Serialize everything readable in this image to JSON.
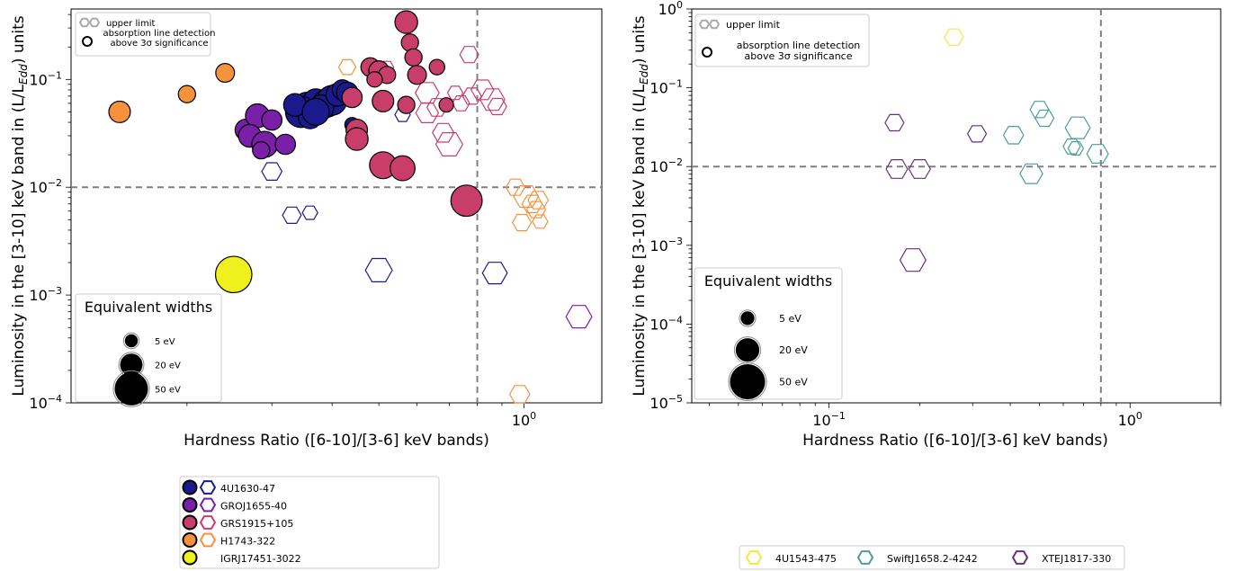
{
  "chart_data": [
    {
      "type": "scatter",
      "xlabel": "Hardness Ratio ([6-10]/[3-6] keV bands)",
      "ylabel": "Luminosity in the [3-10] keV band in (L/L_Edd) units",
      "ylabel_parts": {
        "pre": "Luminosity in the [3-10] keV band in (L/L",
        "sub": "Edd",
        "post": ") units"
      },
      "xscale": "log",
      "yscale": "log",
      "xlim": [
        0.115,
        1.45
      ],
      "ylim": [
        0.0001,
        0.45
      ],
      "x_ticks": [
        {
          "v": 1.0,
          "label": "10"
        }
      ],
      "x_tick_labels_text": [
        "10",
        "0"
      ],
      "y_ticks": [
        {
          "v": 0.0001,
          "base": "10",
          "exp": "−4"
        },
        {
          "v": 0.001,
          "base": "10",
          "exp": "−3"
        },
        {
          "v": 0.01,
          "base": "10",
          "exp": "−2"
        },
        {
          "v": 0.1,
          "base": "10",
          "exp": "−1"
        }
      ],
      "hline": 0.01,
      "vline": 0.8,
      "marker_legend": {
        "upper_limit": "upper limit",
        "detection_line1": "absorption line detection",
        "detection_line2": "above 3σ significance"
      },
      "ew_legend": {
        "title": "Equivalent widths",
        "items": [
          {
            "label": "5 eV",
            "ew": 5
          },
          {
            "label": "20 eV",
            "ew": 20
          },
          {
            "label": "50 eV",
            "ew": 50
          }
        ]
      },
      "series": [
        {
          "name": "4U1630-47",
          "color": "#1a1a8c",
          "detections": [
            [
              0.355,
              0.056,
              28
            ],
            [
              0.37,
              0.062,
              22
            ],
            [
              0.345,
              0.05,
              34
            ],
            [
              0.39,
              0.06,
              26
            ],
            [
              0.4,
              0.064,
              30
            ],
            [
              0.38,
              0.055,
              20
            ],
            [
              0.36,
              0.045,
              18
            ],
            [
              0.41,
              0.072,
              16
            ],
            [
              0.42,
              0.08,
              12
            ],
            [
              0.43,
              0.075,
              14
            ],
            [
              0.335,
              0.058,
              16
            ],
            [
              0.37,
              0.05,
              24
            ],
            [
              0.44,
              0.038,
              5
            ]
          ],
          "limits": [
            [
              0.33,
              0.0055,
              10
            ],
            [
              0.3,
              0.014,
              12
            ],
            [
              0.5,
              0.0017,
              24
            ],
            [
              0.87,
              0.0016,
              20
            ],
            [
              0.36,
              0.0058,
              6
            ],
            [
              0.56,
              0.047,
              6
            ]
          ]
        },
        {
          "name": "GROJ1655-40",
          "color": "#7a1fa8",
          "detections": [
            [
              0.265,
              0.034,
              14
            ],
            [
              0.28,
              0.046,
              18
            ],
            [
              0.27,
              0.03,
              16
            ],
            [
              0.29,
              0.025,
              22
            ],
            [
              0.3,
              0.042,
              12
            ],
            [
              0.32,
              0.025,
              12
            ],
            [
              0.285,
              0.022,
              8
            ]
          ],
          "limits": [
            [
              1.3,
              0.00063,
              22
            ]
          ]
        },
        {
          "name": "GRS1915+105",
          "color": "#c93d6b",
          "detections": [
            [
              0.45,
              0.034,
              14
            ],
            [
              0.57,
              0.34,
              16
            ],
            [
              0.58,
              0.22,
              8
            ],
            [
              0.59,
              0.16,
              8
            ],
            [
              0.6,
              0.11,
              10
            ],
            [
              0.66,
              0.13,
              6
            ],
            [
              0.69,
              0.058,
              5
            ],
            [
              0.48,
              0.13,
              10
            ],
            [
              0.5,
              0.12,
              12
            ],
            [
              0.52,
              0.11,
              8
            ],
            [
              0.49,
              0.1,
              6
            ],
            [
              0.51,
              0.063,
              14
            ],
            [
              0.57,
              0.058,
              8
            ],
            [
              0.45,
              0.028,
              16
            ],
            [
              0.51,
              0.016,
              24
            ],
            [
              0.56,
              0.015,
              20
            ],
            [
              0.76,
              0.0075,
              34
            ],
            [
              0.44,
              0.068,
              12
            ]
          ],
          "limits": [
            [
              0.63,
              0.075,
              18
            ],
            [
              0.66,
              0.055,
              12
            ],
            [
              0.68,
              0.032,
              14
            ],
            [
              0.7,
              0.025,
              24
            ],
            [
              0.72,
              0.075,
              6
            ],
            [
              0.74,
              0.06,
              8
            ],
            [
              0.78,
              0.07,
              10
            ],
            [
              0.82,
              0.08,
              16
            ],
            [
              0.86,
              0.065,
              20
            ],
            [
              0.88,
              0.056,
              10
            ],
            [
              0.77,
              0.17,
              10
            ],
            [
              0.63,
              0.049,
              16
            ],
            [
              0.52,
              0.13,
              4
            ]
          ]
        },
        {
          "name": "H1743-322",
          "color": "#f5923b",
          "detections": [
            [
              0.145,
              0.05,
              14
            ],
            [
              0.2,
              0.073,
              8
            ],
            [
              0.24,
              0.115,
              10
            ]
          ],
          "limits": [
            [
              0.43,
              0.13,
              8
            ],
            [
              0.96,
              0.01,
              10
            ],
            [
              1.01,
              0.0082,
              20
            ],
            [
              1.04,
              0.007,
              12
            ],
            [
              1.07,
              0.0076,
              12
            ],
            [
              1.06,
              0.0062,
              10
            ],
            [
              1.08,
              0.0048,
              6
            ],
            [
              0.99,
              0.0047,
              10
            ],
            [
              0.98,
              0.00012,
              12
            ]
          ]
        },
        {
          "name": "IGRJ17451-3022",
          "color": "#f0f01c",
          "detections": [
            [
              0.25,
              0.00155,
              48
            ]
          ],
          "limits": []
        }
      ],
      "legend_order": [
        "4U1630-47",
        "GROJ1655-40",
        "GRS1915+105",
        "H1743-322",
        "IGRJ17451-3022"
      ]
    },
    {
      "type": "scatter",
      "xlabel": "Hardness Ratio ([6-10]/[3-6] keV bands)",
      "ylabel": "Luminosity in the [3-10] keV band in (L/L_Edd) units",
      "ylabel_parts": {
        "pre": "Luminosity in the [3-10] keV band in (L/L",
        "sub": "Edd",
        "post": ") units"
      },
      "xscale": "log",
      "yscale": "log",
      "xlim": [
        0.035,
        2.0
      ],
      "ylim": [
        1e-05,
        1.0
      ],
      "x_ticks": [
        {
          "v": 0.1,
          "base": "10",
          "exp": "−1"
        },
        {
          "v": 1.0,
          "base": "10",
          "exp": "0"
        }
      ],
      "y_ticks": [
        {
          "v": 1e-05,
          "base": "10",
          "exp": "−5"
        },
        {
          "v": 0.0001,
          "base": "10",
          "exp": "−4"
        },
        {
          "v": 0.001,
          "base": "10",
          "exp": "−3"
        },
        {
          "v": 0.01,
          "base": "10",
          "exp": "−2"
        },
        {
          "v": 0.1,
          "base": "10",
          "exp": "−1"
        },
        {
          "v": 1.0,
          "base": "10",
          "exp": "0"
        }
      ],
      "hline": 0.01,
      "vline": 0.8,
      "marker_legend": {
        "upper_limit": "upper limit",
        "detection_line1": "absorption line detection",
        "detection_line2": "above 3σ significance"
      },
      "ew_legend": {
        "title": "Equivalent widths",
        "items": [
          {
            "label": "5 eV",
            "ew": 5
          },
          {
            "label": "20 eV",
            "ew": 20
          },
          {
            "label": "50 eV",
            "ew": 50
          }
        ]
      },
      "series": [
        {
          "name": "4U1543-475",
          "color": "#f5e642",
          "detections": [],
          "limits": [
            [
              0.26,
              0.44,
              10
            ]
          ]
        },
        {
          "name": "SwiftJ1658.2-4242",
          "color": "#4a9e9a",
          "detections": [],
          "limits": [
            [
              0.41,
              0.025,
              12
            ],
            [
              0.5,
              0.053,
              10
            ],
            [
              0.52,
              0.041,
              10
            ],
            [
              0.47,
              0.0081,
              16
            ],
            [
              0.64,
              0.018,
              8
            ],
            [
              0.66,
              0.017,
              6
            ],
            [
              0.67,
              0.031,
              20
            ],
            [
              0.78,
              0.0145,
              14
            ]
          ]
        },
        {
          "name": "XTEJ1817-330",
          "color": "#6a2f7a",
          "detections": [],
          "limits": [
            [
              0.165,
              0.036,
              10
            ],
            [
              0.168,
              0.0093,
              14
            ],
            [
              0.2,
              0.0093,
              14
            ],
            [
              0.31,
              0.026,
              10
            ],
            [
              0.19,
              0.00065,
              22
            ]
          ]
        }
      ],
      "legend_order": [
        "4U1543-475",
        "SwiftJ1658.2-4242",
        "XTEJ1817-330"
      ]
    }
  ]
}
